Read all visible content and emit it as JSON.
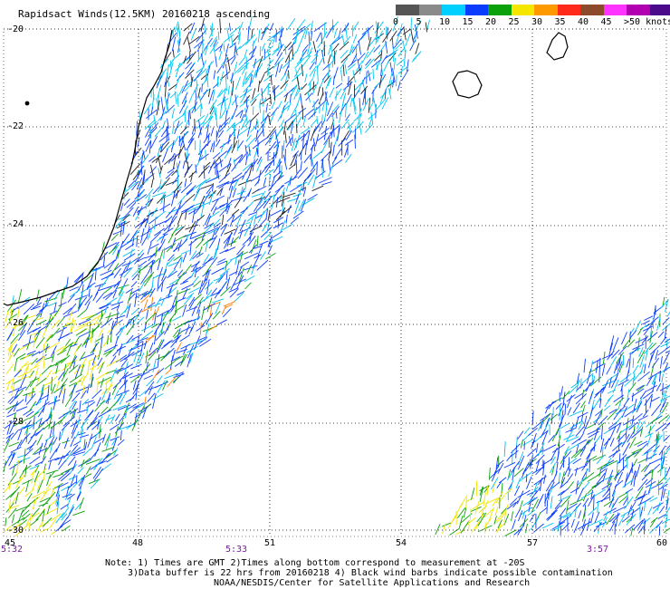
{
  "title": "Rapidsact Winds(12.5KM) 20160218 ascending",
  "legend": {
    "labels": [
      "0",
      "5",
      "10",
      "15",
      "20",
      "25",
      "30",
      "35",
      "40",
      "45",
      ">50 knots"
    ],
    "colors": [
      "#555555",
      "#8a8a8a",
      "#00d0ff",
      "#0a3cff",
      "#0aa10a",
      "#f5e600",
      "#ff9900",
      "#ff2a1a",
      "#8b4a2a",
      "#ff33ff",
      "#b000b0",
      "#4a0a8a"
    ]
  },
  "axes": {
    "lat_labels": [
      "-20",
      "-22",
      "-24",
      "-26",
      "-28",
      "-30"
    ],
    "lon_labels": [
      "45",
      "48",
      "51",
      "54",
      "57",
      "60"
    ]
  },
  "times": [
    "5:32",
    "5:33",
    "3:57"
  ],
  "notes": [
    "Note: 1) Times are GMT 2)Times along bottom correspond to measurement at -20S",
    "3)Data buffer is 22 hrs from 20160218 4) Black wind barbs indicate possible contamination",
    "NOAA/NESDIS/Center for Satellite Applications and Research"
  ]
}
